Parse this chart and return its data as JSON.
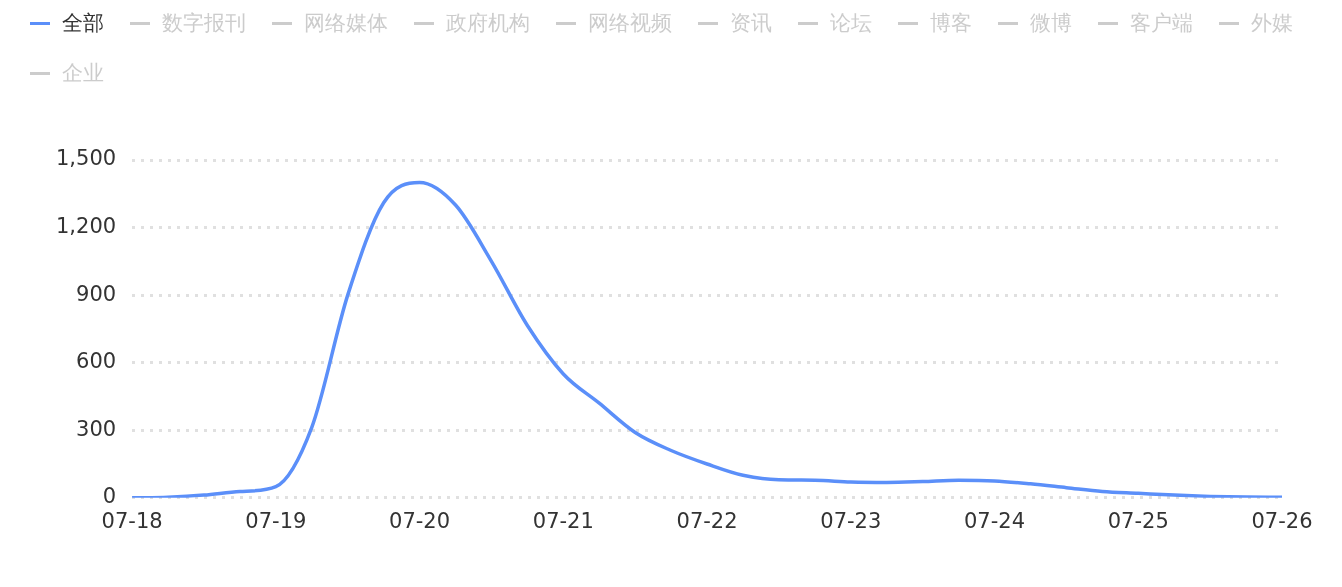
{
  "chart_data": {
    "type": "line",
    "categories": [
      "07-18",
      null,
      null,
      null,
      "07-19",
      null,
      null,
      null,
      "07-20",
      null,
      null,
      null,
      "07-21",
      null,
      null,
      null,
      "07-22",
      null,
      null,
      null,
      "07-23",
      null,
      null,
      null,
      "07-24",
      null,
      null,
      null,
      "07-25",
      null,
      null,
      null,
      "07-26"
    ],
    "series": [
      {
        "name": "全部",
        "color": "#5b8ff9",
        "values": [
          0,
          3,
          12,
          28,
          50,
          313,
          900,
          1310,
          1400,
          1300,
          1050,
          765,
          550,
          420,
          290,
          210,
          150,
          100,
          80,
          78,
          70,
          68,
          72,
          78,
          75,
          62,
          45,
          28,
          20,
          12,
          6,
          3,
          2
        ]
      },
      {
        "name": "数字报刊",
        "color": "#cccccc",
        "values": [
          null,
          null,
          null,
          null,
          null,
          null,
          null,
          null,
          null,
          null,
          null,
          null,
          null,
          null,
          null,
          null,
          null,
          null,
          null,
          null,
          null,
          null,
          null,
          null,
          null,
          null,
          null,
          null,
          null,
          null,
          null,
          null,
          null
        ]
      },
      {
        "name": "网络媒体",
        "color": "#cccccc",
        "values": [
          null,
          null,
          null,
          null,
          null,
          null,
          null,
          null,
          null,
          null,
          null,
          null,
          null,
          null,
          null,
          null,
          null,
          null,
          null,
          null,
          null,
          null,
          null,
          null,
          null,
          null,
          null,
          null,
          null,
          null,
          null,
          null,
          null
        ]
      },
      {
        "name": "政府机构",
        "color": "#cccccc",
        "values": [
          null,
          null,
          null,
          null,
          null,
          null,
          null,
          null,
          null,
          null,
          null,
          null,
          null,
          null,
          null,
          null,
          null,
          null,
          null,
          null,
          null,
          null,
          null,
          null,
          null,
          null,
          null,
          null,
          null,
          null,
          null,
          null,
          null
        ]
      },
      {
        "name": "网络视频",
        "color": "#cccccc",
        "values": [
          null,
          null,
          null,
          null,
          null,
          null,
          null,
          null,
          null,
          null,
          null,
          null,
          null,
          null,
          null,
          null,
          null,
          null,
          null,
          null,
          null,
          null,
          null,
          null,
          null,
          null,
          null,
          null,
          null,
          null,
          null,
          null,
          null
        ]
      },
      {
        "name": "资讯",
        "color": "#cccccc",
        "values": [
          null,
          null,
          null,
          null,
          null,
          null,
          null,
          null,
          null,
          null,
          null,
          null,
          null,
          null,
          null,
          null,
          null,
          null,
          null,
          null,
          null,
          null,
          null,
          null,
          null,
          null,
          null,
          null,
          null,
          null,
          null,
          null,
          null
        ]
      },
      {
        "name": "论坛",
        "color": "#cccccc",
        "values": [
          null,
          null,
          null,
          null,
          null,
          null,
          null,
          null,
          null,
          null,
          null,
          null,
          null,
          null,
          null,
          null,
          null,
          null,
          null,
          null,
          null,
          null,
          null,
          null,
          null,
          null,
          null,
          null,
          null,
          null,
          null,
          null,
          null
        ]
      },
      {
        "name": "博客",
        "color": "#cccccc",
        "values": [
          null,
          null,
          null,
          null,
          null,
          null,
          null,
          null,
          null,
          null,
          null,
          null,
          null,
          null,
          null,
          null,
          null,
          null,
          null,
          null,
          null,
          null,
          null,
          null,
          null,
          null,
          null,
          null,
          null,
          null,
          null,
          null,
          null
        ]
      },
      {
        "name": "微博",
        "color": "#cccccc",
        "values": [
          null,
          null,
          null,
          null,
          null,
          null,
          null,
          null,
          null,
          null,
          null,
          null,
          null,
          null,
          null,
          null,
          null,
          null,
          null,
          null,
          null,
          null,
          null,
          null,
          null,
          null,
          null,
          null,
          null,
          null,
          null,
          null,
          null
        ]
      },
      {
        "name": "客户端",
        "color": "#cccccc",
        "values": [
          null,
          null,
          null,
          null,
          null,
          null,
          null,
          null,
          null,
          null,
          null,
          null,
          null,
          null,
          null,
          null,
          null,
          null,
          null,
          null,
          null,
          null,
          null,
          null,
          null,
          null,
          null,
          null,
          null,
          null,
          null,
          null,
          null
        ]
      },
      {
        "name": "外媒",
        "color": "#cccccc",
        "values": [
          null,
          null,
          null,
          null,
          null,
          null,
          null,
          null,
          null,
          null,
          null,
          null,
          null,
          null,
          null,
          null,
          null,
          null,
          null,
          null,
          null,
          null,
          null,
          null,
          null,
          null,
          null,
          null,
          null,
          null,
          null,
          null,
          null
        ]
      },
      {
        "name": "企业",
        "color": "#cccccc",
        "values": [
          null,
          null,
          null,
          null,
          null,
          null,
          null,
          null,
          null,
          null,
          null,
          null,
          null,
          null,
          null,
          null,
          null,
          null,
          null,
          null,
          null,
          null,
          null,
          null,
          null,
          null,
          null,
          null,
          null,
          null,
          null,
          null,
          null
        ]
      }
    ],
    "ylim": [
      0,
      1500
    ],
    "yticks": [
      0,
      {
        "value": 300,
        "label": "300"
      },
      {
        "value": 600,
        "label": "600"
      },
      {
        "value": 900,
        "label": "900"
      },
      {
        "value": 1200,
        "label": "1,200"
      },
      {
        "value": 1500,
        "label": "1,500"
      }
    ],
    "grid": "y",
    "legend": "top left",
    "marker": "none",
    "line_style": "solid"
  }
}
